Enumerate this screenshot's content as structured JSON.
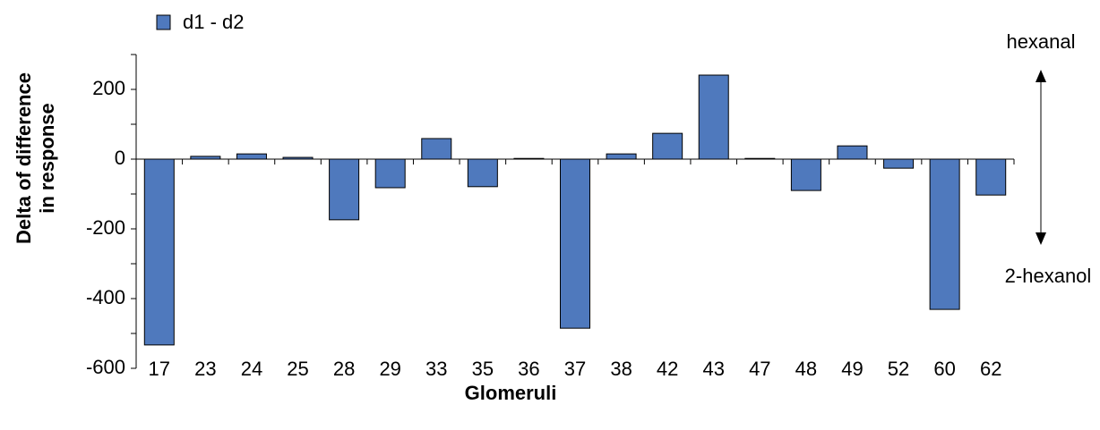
{
  "chart_data": {
    "type": "bar",
    "legend": "d1 - d2",
    "xlabel": "Glomeruli",
    "ylabel": [
      "Delta of difference",
      "in response"
    ],
    "annotations": {
      "top": "hexanal",
      "bottom": "2-hexanol"
    },
    "categories": [
      "17",
      "23",
      "24",
      "25",
      "28",
      "29",
      "33",
      "35",
      "36",
      "37",
      "38",
      "42",
      "43",
      "47",
      "48",
      "49",
      "52",
      "60",
      "62"
    ],
    "values": [
      -533,
      8,
      15,
      5,
      -174,
      -82,
      59,
      -79,
      2,
      -485,
      15,
      74,
      241,
      2,
      -90,
      38,
      -26,
      -431,
      -103
    ],
    "color": "#4f79bd",
    "ylim": [
      -600,
      300
    ],
    "yticks": [
      -600,
      -400,
      -200,
      0,
      200
    ]
  }
}
